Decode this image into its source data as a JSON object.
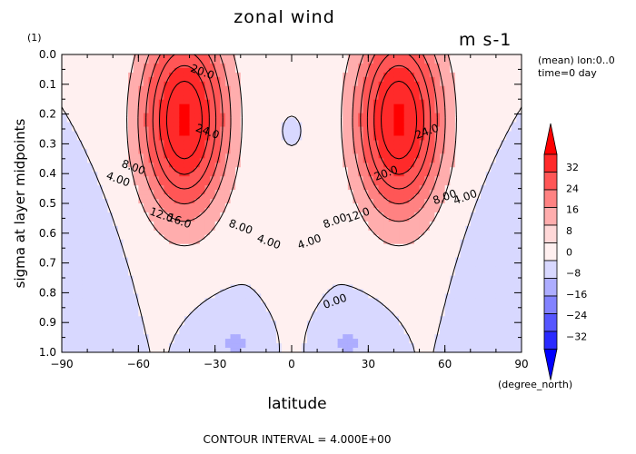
{
  "chart_data": {
    "type": "heatmap",
    "title": "zonal wind",
    "panel_number": "(1)",
    "units": "m s-1",
    "meta": [
      "(mean) lon:0..0",
      "time=0 day"
    ],
    "xlabel": "latitude",
    "xunits": "(degree_north)",
    "ylabel": "sigma at layer midpoints",
    "xlim": [
      -90,
      90
    ],
    "ylim": [
      0.0,
      1.0
    ],
    "y_inverted": true,
    "xticks": [
      -90,
      -60,
      -30,
      0,
      30,
      60,
      90
    ],
    "xtick_labels": [
      "−90",
      "−60",
      "−30",
      "0",
      "30",
      "60",
      "90"
    ],
    "yticks": [
      0.0,
      0.1,
      0.2,
      0.3,
      0.4,
      0.5,
      0.6,
      0.7,
      0.8,
      0.9,
      1.0
    ],
    "ytick_labels": [
      "0.0",
      "0.1",
      "0.2",
      "0.3",
      "0.4",
      "0.5",
      "0.6",
      "0.7",
      "0.8",
      "0.9",
      "1.0"
    ],
    "contour_interval_text": "CONTOUR INTERVAL = 4.000E+00",
    "contour_interval": 4.0,
    "jets": [
      {
        "lat": -42,
        "sigma": 0.22,
        "max_speed": 29
      },
      {
        "lat": 42,
        "sigma": 0.22,
        "max_speed": 29
      }
    ],
    "contour_labels": [
      {
        "text": "20.0",
        "lat": -35,
        "sigma": 0.06
      },
      {
        "text": "24.0",
        "lat": -33,
        "sigma": 0.26
      },
      {
        "text": "8.00",
        "lat": -62,
        "sigma": 0.38
      },
      {
        "text": "4.00",
        "lat": -68,
        "sigma": 0.42
      },
      {
        "text": "12.0",
        "lat": -51,
        "sigma": 0.54
      },
      {
        "text": "16.0",
        "lat": -44,
        "sigma": 0.56
      },
      {
        "text": "8.00",
        "lat": -20,
        "sigma": 0.58
      },
      {
        "text": "4.00",
        "lat": -9,
        "sigma": 0.63
      },
      {
        "text": "4.00",
        "lat": 7,
        "sigma": 0.63
      },
      {
        "text": "8.00",
        "lat": 17,
        "sigma": 0.56
      },
      {
        "text": "12.0",
        "lat": 26,
        "sigma": 0.54
      },
      {
        "text": "20.0",
        "lat": 37,
        "sigma": 0.4
      },
      {
        "text": "24.0",
        "lat": 53,
        "sigma": 0.26
      },
      {
        "text": "8.00",
        "lat": 60,
        "sigma": 0.48
      },
      {
        "text": "4.00",
        "lat": 68,
        "sigma": 0.48
      },
      {
        "text": "0.00",
        "lat": 17,
        "sigma": 0.83
      }
    ],
    "colorbar": {
      "ticks": [
        "32",
        "24",
        "16",
        "8",
        "0",
        "−8",
        "−16",
        "−24",
        "−32"
      ],
      "colors": [
        "#ff0000",
        "#ff2a2a",
        "#ff5656",
        "#ff8282",
        "#ffadad",
        "#ffd8d8",
        "#fff0f0",
        "#d8d8ff",
        "#adadff",
        "#8282ff",
        "#5656ff",
        "#2a2aff",
        "#0000ff"
      ]
    },
    "grid": false
  }
}
